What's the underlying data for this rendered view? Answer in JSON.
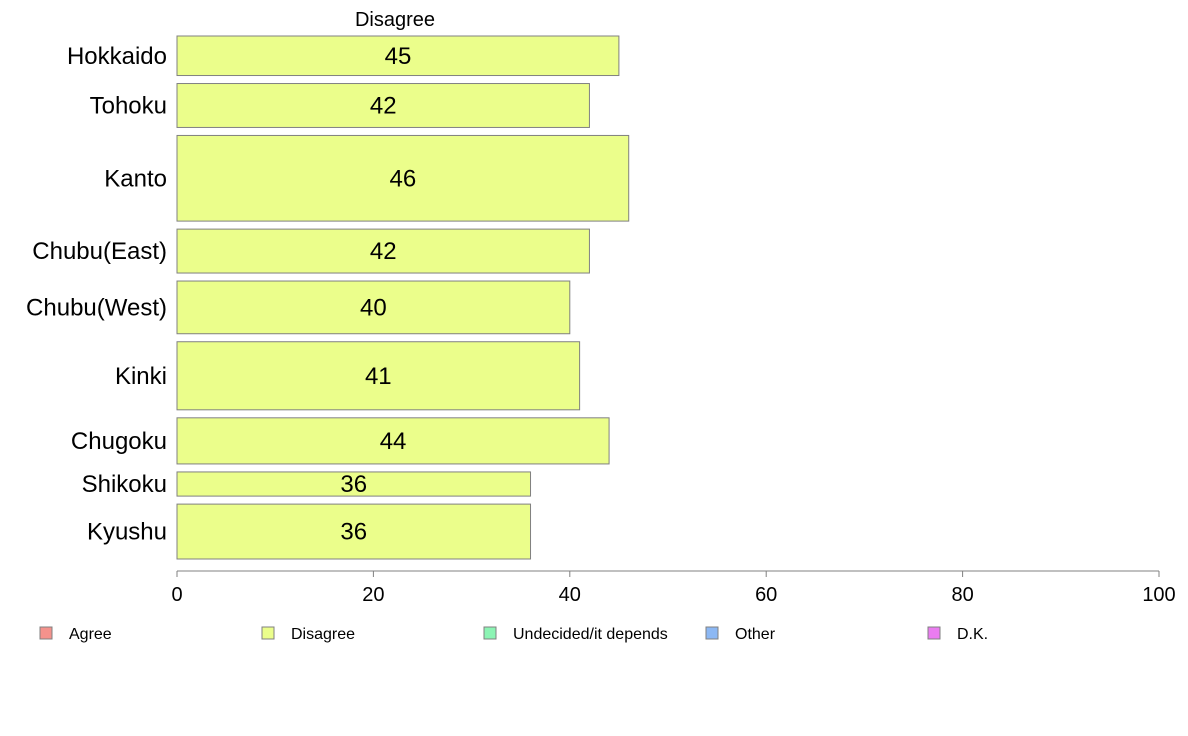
{
  "chart_data": {
    "type": "bar",
    "orientation": "horizontal",
    "panel_title": "Disagree",
    "categories": [
      "Hokkaido",
      "Tohoku",
      "Kanto",
      "Chubu(East)",
      "Chubu(West)",
      "Kinki",
      "Chugoku",
      "Shikoku",
      "Kyushu"
    ],
    "series": [
      {
        "name": "Disagree",
        "values": [
          45,
          42,
          46,
          42,
          40,
          41,
          44,
          36,
          36
        ]
      }
    ],
    "bar_labels": [
      "45",
      "42",
      "46",
      "42",
      "40",
      "41",
      "44",
      "36",
      "36"
    ],
    "relative_bar_thickness": [
      0.9,
      1.0,
      1.95,
      1.0,
      1.2,
      1.55,
      1.05,
      0.55,
      1.25
    ],
    "xlim": [
      0,
      100
    ],
    "xticks": [
      0,
      20,
      40,
      60,
      80,
      100
    ],
    "xtick_labels": [
      "0",
      "20",
      "40",
      "60",
      "80",
      "100"
    ],
    "grid": false,
    "legend_position": "bottom",
    "legend": [
      {
        "label": "Agree",
        "color": "#f4928c"
      },
      {
        "label": "Disagree",
        "color": "#ebfe8b"
      },
      {
        "label": "Undecided/it depends",
        "color": "#8cf4b4"
      },
      {
        "label": "Other",
        "color": "#8cb8f4"
      },
      {
        "label": "D.K.",
        "color": "#ea7cf0"
      }
    ],
    "bar_color": "#ebfe8b",
    "bar_edge_color": "#808080"
  }
}
